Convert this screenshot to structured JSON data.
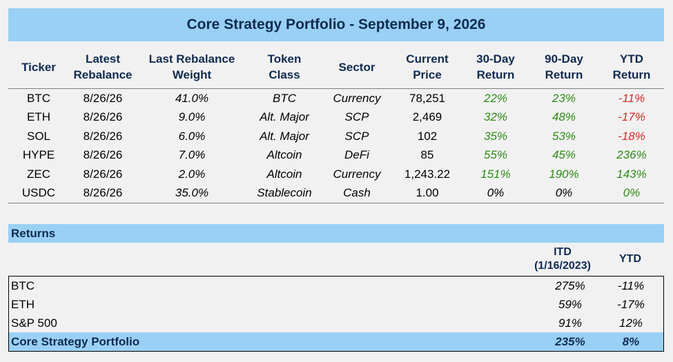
{
  "title": "Core Strategy Portfolio - September 9, 2026",
  "holdings": {
    "headers": {
      "ticker": "Ticker",
      "rebalance_1": "Latest",
      "rebalance_2": "Rebalance",
      "weight_1": "Last Rebalance",
      "weight_2": "Weight",
      "class_1": "Token",
      "class_2": "Class",
      "sector": "Sector",
      "price_1": "Current",
      "price_2": "Price",
      "r30_1": "30-Day",
      "r30_2": "Return",
      "r90_1": "90-Day",
      "r90_2": "Return",
      "ytd_1": "YTD",
      "ytd_2": "Return"
    },
    "rows": [
      {
        "ticker": "BTC",
        "rebalance": "8/26/26",
        "weight": "41.0%",
        "token_class": "BTC",
        "sector": "Currency",
        "price": "78,251",
        "r30": "22%",
        "r90": "23%",
        "ytd": "-11%"
      },
      {
        "ticker": "ETH",
        "rebalance": "8/26/26",
        "weight": "9.0%",
        "token_class": "Alt. Major",
        "sector": "SCP",
        "price": "2,469",
        "r30": "32%",
        "r90": "48%",
        "ytd": "-17%"
      },
      {
        "ticker": "SOL",
        "rebalance": "8/26/26",
        "weight": "6.0%",
        "token_class": "Alt. Major",
        "sector": "SCP",
        "price": "102",
        "r30": "35%",
        "r90": "53%",
        "ytd": "-18%"
      },
      {
        "ticker": "HYPE",
        "rebalance": "8/26/26",
        "weight": "7.0%",
        "token_class": "Altcoin",
        "sector": "DeFi",
        "price": "85",
        "r30": "55%",
        "r90": "45%",
        "ytd": "236%"
      },
      {
        "ticker": "ZEC",
        "rebalance": "8/26/26",
        "weight": "2.0%",
        "token_class": "Altcoin",
        "sector": "Currency",
        "price": "1,243.22",
        "r30": "151%",
        "r90": "190%",
        "ytd": "143%"
      },
      {
        "ticker": "USDC",
        "rebalance": "8/26/26",
        "weight": "35.0%",
        "token_class": "Stablecoin",
        "sector": "Cash",
        "price": "1.00",
        "r30": "0%",
        "r90": "0%",
        "ytd": "0%"
      }
    ]
  },
  "returns": {
    "heading": "Returns",
    "itd_label_1": "ITD",
    "itd_label_2": "(1/16/2023)",
    "ytd_label": "YTD",
    "rows": [
      {
        "label": "BTC",
        "itd": "275%",
        "ytd": "-11%"
      },
      {
        "label": "ETH",
        "itd": "59%",
        "ytd": "-17%"
      },
      {
        "label": "S&P 500",
        "itd": "91%",
        "ytd": "12%"
      }
    ],
    "total": {
      "label": "Core Strategy Portfolio",
      "itd": "235%",
      "ytd": "8%"
    }
  },
  "colors": {
    "header_band": "#9ad0f5",
    "header_text": "#0f2a4f",
    "positive": "#2e8b18",
    "negative": "#d82727"
  }
}
